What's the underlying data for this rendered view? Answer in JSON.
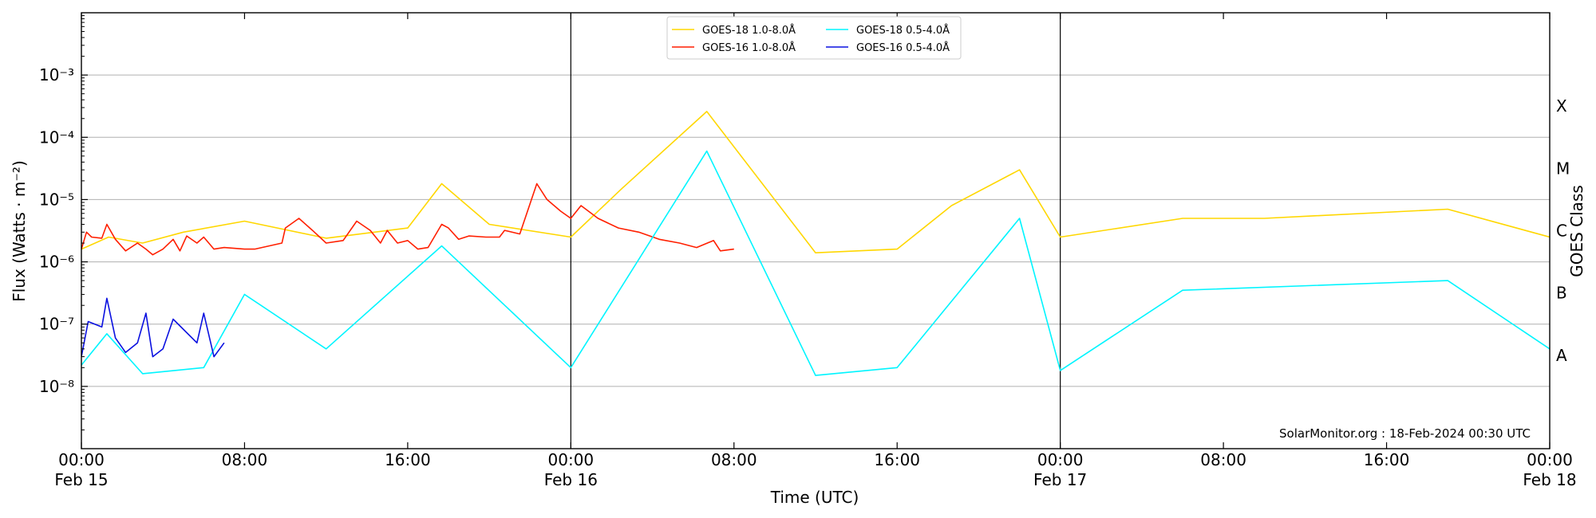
{
  "chart_data": {
    "type": "line",
    "ylabel": "Flux (Watts · m⁻²)",
    "xlabel": "Time (UTC)",
    "right_axis_label": "GOES Class",
    "x_range": [
      "2024-02-15T00:00",
      "2024-02-18T00:00"
    ],
    "ylim": [
      1e-09,
      0.01
    ],
    "y_scale": "log",
    "grid": "horizontal",
    "legend_position": "top-center",
    "watermark": "SolarMonitor.org : 18-Feb-2024 00:30 UTC",
    "x_ticks": [
      {
        "x": "2024-02-15T00:00",
        "time": "00:00",
        "date": "Feb 15"
      },
      {
        "x": "2024-02-15T08:00",
        "time": "08:00",
        "date": ""
      },
      {
        "x": "2024-02-15T16:00",
        "time": "16:00",
        "date": ""
      },
      {
        "x": "2024-02-16T00:00",
        "time": "00:00",
        "date": "Feb 16"
      },
      {
        "x": "2024-02-16T08:00",
        "time": "08:00",
        "date": ""
      },
      {
        "x": "2024-02-16T16:00",
        "time": "16:00",
        "date": ""
      },
      {
        "x": "2024-02-17T00:00",
        "time": "00:00",
        "date": "Feb 17"
      },
      {
        "x": "2024-02-17T08:00",
        "time": "08:00",
        "date": ""
      },
      {
        "x": "2024-02-17T16:00",
        "time": "16:00",
        "date": ""
      },
      {
        "x": "2024-02-18T00:00",
        "time": "00:00",
        "date": "Feb 18"
      }
    ],
    "y_ticks": [
      {
        "value": -8,
        "label": "10⁻⁸"
      },
      {
        "value": -7,
        "label": "10⁻⁷"
      },
      {
        "value": -6,
        "label": "10⁻⁶"
      },
      {
        "value": -5,
        "label": "10⁻⁵"
      },
      {
        "value": -4,
        "label": "10⁻⁴"
      },
      {
        "value": -3,
        "label": "10⁻³"
      }
    ],
    "day_dividers": [
      "2024-02-16T00:00",
      "2024-02-17T00:00"
    ],
    "goes_classes": [
      {
        "label": "A",
        "value": -7.5
      },
      {
        "label": "B",
        "value": -6.5
      },
      {
        "label": "C",
        "value": -5.5
      },
      {
        "label": "M",
        "value": -4.5
      },
      {
        "label": "X",
        "value": -3.5
      }
    ],
    "series": [
      {
        "name": "GOES-18 1.0-8.0Å",
        "color": "#ffd700",
        "data": [
          [
            "2024-02-15T00:00",
            1.6e-06
          ],
          [
            "2024-02-15T01:20",
            2.5e-06
          ],
          [
            "2024-02-15T03:00",
            2e-06
          ],
          [
            "2024-02-15T05:00",
            3e-06
          ],
          [
            "2024-02-15T08:00",
            4.5e-06
          ],
          [
            "2024-02-15T12:00",
            2.4e-06
          ],
          [
            "2024-02-15T16:00",
            3.5e-06
          ],
          [
            "2024-02-15T17:40",
            1.8e-05
          ],
          [
            "2024-02-15T20:00",
            4e-06
          ],
          [
            "2024-02-16T00:00",
            2.5e-06
          ],
          [
            "2024-02-16T02:30",
            1.5e-05
          ],
          [
            "2024-02-16T06:40",
            0.00026
          ],
          [
            "2024-02-16T12:00",
            1.4e-06
          ],
          [
            "2024-02-16T16:00",
            1.6e-06
          ],
          [
            "2024-02-16T18:40",
            8e-06
          ],
          [
            "2024-02-16T22:00",
            3e-05
          ],
          [
            "2024-02-17T00:00",
            2.5e-06
          ],
          [
            "2024-02-17T06:00",
            5e-06
          ],
          [
            "2024-02-17T10:00",
            5e-06
          ],
          [
            "2024-02-17T19:00",
            7e-06
          ],
          [
            "2024-02-18T00:00",
            2.5e-06
          ]
        ]
      },
      {
        "name": "GOES-16 1.0-8.0Å",
        "color": "#ff1f00",
        "data": [
          [
            "2024-02-15T00:00",
            1.6e-06
          ],
          [
            "2024-02-15T00:15",
            3e-06
          ],
          [
            "2024-02-15T00:30",
            2.5e-06
          ],
          [
            "2024-02-15T01:00",
            2.4e-06
          ],
          [
            "2024-02-15T01:15",
            4e-06
          ],
          [
            "2024-02-15T01:40",
            2.3e-06
          ],
          [
            "2024-02-15T02:10",
            1.5e-06
          ],
          [
            "2024-02-15T02:45",
            2e-06
          ],
          [
            "2024-02-15T03:10",
            1.6e-06
          ],
          [
            "2024-02-15T03:30",
            1.3e-06
          ],
          [
            "2024-02-15T04:00",
            1.6e-06
          ],
          [
            "2024-02-15T04:30",
            2.3e-06
          ],
          [
            "2024-02-15T04:50",
            1.5e-06
          ],
          [
            "2024-02-15T05:10",
            2.6e-06
          ],
          [
            "2024-02-15T05:40",
            2e-06
          ],
          [
            "2024-02-15T06:00",
            2.5e-06
          ],
          [
            "2024-02-15T06:30",
            1.6e-06
          ],
          [
            "2024-02-15T07:00",
            1.7e-06
          ],
          [
            "2024-02-15T08:00",
            1.6e-06
          ],
          [
            "2024-02-15T08:30",
            1.6e-06
          ],
          [
            "2024-02-15T09:50",
            2e-06
          ],
          [
            "2024-02-15T10:00",
            3.5e-06
          ],
          [
            "2024-02-15T10:40",
            5e-06
          ],
          [
            "2024-02-15T11:20",
            3.2e-06
          ],
          [
            "2024-02-15T12:00",
            2e-06
          ],
          [
            "2024-02-15T12:50",
            2.2e-06
          ],
          [
            "2024-02-15T13:30",
            4.5e-06
          ],
          [
            "2024-02-15T14:10",
            3.2e-06
          ],
          [
            "2024-02-15T14:40",
            2e-06
          ],
          [
            "2024-02-15T15:00",
            3.2e-06
          ],
          [
            "2024-02-15T15:30",
            2e-06
          ],
          [
            "2024-02-15T16:00",
            2.2e-06
          ],
          [
            "2024-02-15T16:30",
            1.6e-06
          ],
          [
            "2024-02-15T17:00",
            1.7e-06
          ],
          [
            "2024-02-15T17:40",
            4e-06
          ],
          [
            "2024-02-15T18:00",
            3.5e-06
          ],
          [
            "2024-02-15T18:30",
            2.3e-06
          ],
          [
            "2024-02-15T19:00",
            2.6e-06
          ],
          [
            "2024-02-15T19:50",
            2.5e-06
          ],
          [
            "2024-02-15T20:30",
            2.5e-06
          ],
          [
            "2024-02-15T20:45",
            3.2e-06
          ],
          [
            "2024-02-15T21:30",
            2.8e-06
          ],
          [
            "2024-02-15T22:20",
            1.8e-05
          ],
          [
            "2024-02-15T22:50",
            1e-05
          ],
          [
            "2024-02-15T23:30",
            6.5e-06
          ],
          [
            "2024-02-16T00:00",
            5e-06
          ],
          [
            "2024-02-16T00:30",
            8e-06
          ],
          [
            "2024-02-16T01:20",
            5e-06
          ],
          [
            "2024-02-16T02:20",
            3.5e-06
          ],
          [
            "2024-02-16T03:20",
            3e-06
          ],
          [
            "2024-02-16T04:20",
            2.3e-06
          ],
          [
            "2024-02-16T05:20",
            2e-06
          ],
          [
            "2024-02-16T06:10",
            1.7e-06
          ],
          [
            "2024-02-16T07:00",
            2.2e-06
          ],
          [
            "2024-02-16T07:20",
            1.5e-06
          ],
          [
            "2024-02-16T08:00",
            1.6e-06
          ]
        ]
      },
      {
        "name": "GOES-18 0.5-4.0Å",
        "color": "#00f5ff",
        "data": [
          [
            "2024-02-15T00:00",
            2.2e-08
          ],
          [
            "2024-02-15T01:15",
            7e-08
          ],
          [
            "2024-02-15T03:00",
            1.6e-08
          ],
          [
            "2024-02-15T06:00",
            2e-08
          ],
          [
            "2024-02-15T08:00",
            3e-07
          ],
          [
            "2024-02-15T12:00",
            4e-08
          ],
          [
            "2024-02-15T17:40",
            1.8e-06
          ],
          [
            "2024-02-16T00:00",
            2e-08
          ],
          [
            "2024-02-16T06:40",
            6e-05
          ],
          [
            "2024-02-16T12:00",
            1.5e-08
          ],
          [
            "2024-02-16T16:00",
            2e-08
          ],
          [
            "2024-02-16T22:00",
            5e-06
          ],
          [
            "2024-02-17T00:00",
            1.8e-08
          ],
          [
            "2024-02-17T06:00",
            3.5e-07
          ],
          [
            "2024-02-17T19:00",
            5e-07
          ],
          [
            "2024-02-18T00:00",
            4e-08
          ]
        ]
      },
      {
        "name": "GOES-16 0.5-4.0Å",
        "color": "#0a10e0",
        "data": [
          [
            "2024-02-15T00:00",
            3e-08
          ],
          [
            "2024-02-15T00:20",
            1.1e-07
          ],
          [
            "2024-02-15T01:00",
            9e-08
          ],
          [
            "2024-02-15T01:15",
            2.6e-07
          ],
          [
            "2024-02-15T01:40",
            6e-08
          ],
          [
            "2024-02-15T02:10",
            3.5e-08
          ],
          [
            "2024-02-15T02:45",
            5e-08
          ],
          [
            "2024-02-15T03:10",
            1.5e-07
          ],
          [
            "2024-02-15T03:30",
            3e-08
          ],
          [
            "2024-02-15T04:00",
            4e-08
          ],
          [
            "2024-02-15T04:30",
            1.2e-07
          ],
          [
            "2024-02-15T05:40",
            5e-08
          ],
          [
            "2024-02-15T06:00",
            1.5e-07
          ],
          [
            "2024-02-15T06:30",
            3e-08
          ],
          [
            "2024-02-15T07:00",
            5e-08
          ]
        ]
      }
    ]
  }
}
